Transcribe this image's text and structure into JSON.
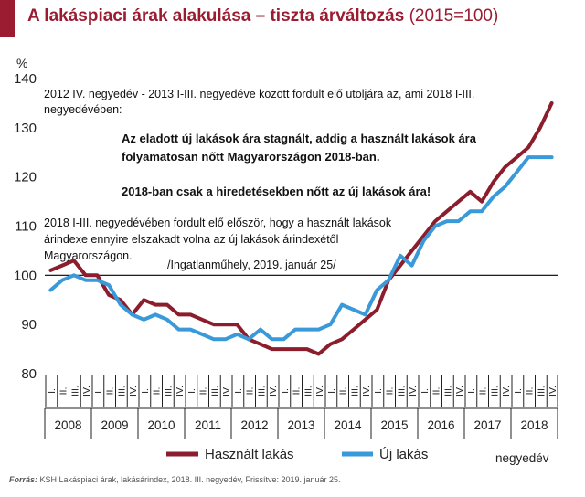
{
  "header": {
    "title": "A lakáspiaci árak alakulása – tiszta árváltozás",
    "subtitle": "(2015=100)"
  },
  "chart_data": {
    "type": "line",
    "ylabel": "%",
    "ylim": [
      80,
      140
    ],
    "yticks": [
      "80",
      "90",
      "100",
      "110",
      "120",
      "130",
      "140"
    ],
    "baseline": 100,
    "quarter_labels": [
      "I.",
      "II.",
      "III.",
      "IV."
    ],
    "years": [
      "2008",
      "2009",
      "2010",
      "2011",
      "2012",
      "2013",
      "2014",
      "2015",
      "2016",
      "2017",
      "2018"
    ],
    "series": [
      {
        "name": "Használt lakás",
        "color": "#8b1d2c",
        "values": [
          101,
          102,
          103,
          100,
          100,
          96,
          95,
          92,
          95,
          94,
          94,
          92,
          92,
          91,
          90,
          90,
          90,
          87,
          86,
          85,
          85,
          85,
          85,
          84,
          86,
          87,
          89,
          91,
          93,
          99,
          102,
          105,
          108,
          111,
          113,
          115,
          117,
          115,
          119,
          122,
          124,
          126,
          130,
          135
        ]
      },
      {
        "name": "Új lakás",
        "color": "#3a9ad9",
        "values": [
          97,
          99,
          100,
          99,
          99,
          98,
          94,
          92,
          91,
          92,
          91,
          89,
          89,
          88,
          87,
          87,
          88,
          87,
          89,
          87,
          87,
          89,
          89,
          89,
          90,
          94,
          93,
          92,
          97,
          99,
          104,
          102,
          107,
          110,
          111,
          111,
          113,
          113,
          116,
          118,
          121,
          124,
          124,
          124
        ]
      }
    ],
    "legend_extra": "negyedév",
    "annotations": [
      "2012 IV. negyedév - 2013 I-III. negyedéve között fordult elő utoljára az, ami 2018 I-III.",
      "negyedévében:",
      "Az eladott új lakások ára stagnált, addig a használt lakások ára",
      "folyamatosan nőtt Magyarországon 2018-ban.",
      "2018-ban csak a hiredetésekben nőtt az új lakások ára!",
      "2018 I-III. negyedévében fordult elő először, hogy a használt lakások",
      "árindexe ennyire elszakadt volna az új lakások árindexétől",
      "Magyarországon.",
      "/Ingatlanműhely, 2019. január 25/"
    ]
  },
  "source": {
    "label": "Forrás:",
    "text": "KSH Lakáspiaci árak, lakásárindex, 2018. III. negyedév, Frissítve: 2019. január 25."
  }
}
